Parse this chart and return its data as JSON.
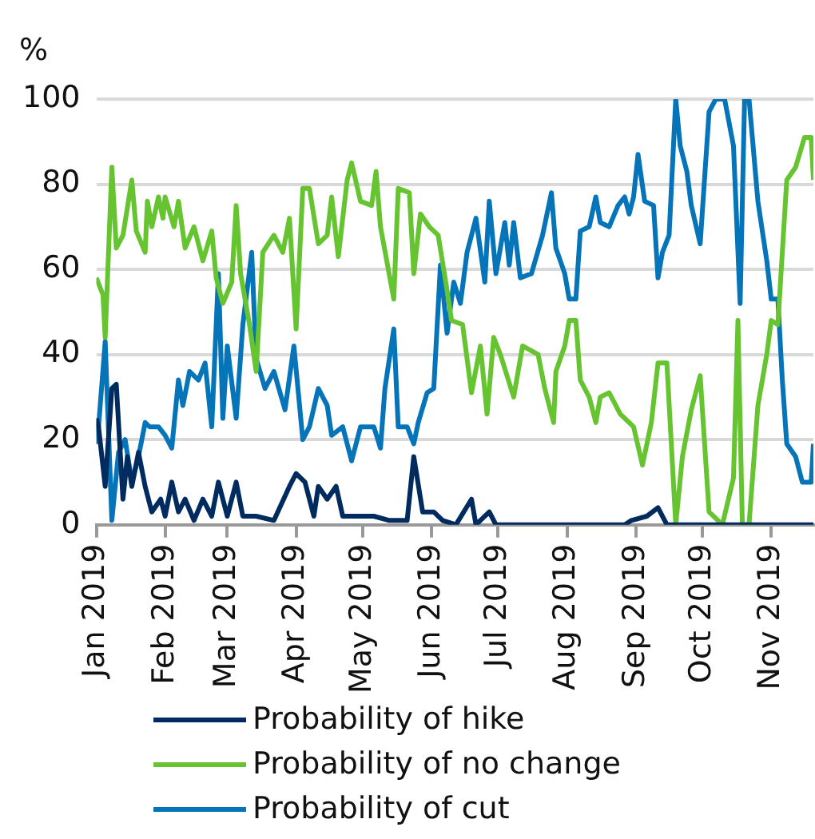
{
  "chart_data": {
    "type": "line",
    "ylabel": "%",
    "xlim": [
      "2019-01-01",
      "2019-11-20"
    ],
    "ylim": [
      0,
      100
    ],
    "yticks": [
      0,
      20,
      40,
      60,
      80,
      100
    ],
    "xticks": [
      {
        "value": "2019-01-01",
        "label": "Jan 2019"
      },
      {
        "value": "2019-02-01",
        "label": "Feb 2019"
      },
      {
        "value": "2019-03-01",
        "label": "Mar 2019"
      },
      {
        "value": "2019-04-01",
        "label": "Apr 2019"
      },
      {
        "value": "2019-05-01",
        "label": "May 2019"
      },
      {
        "value": "2019-06-01",
        "label": "Jun 2019"
      },
      {
        "value": "2019-07-01",
        "label": "Jul 2019"
      },
      {
        "value": "2019-08-01",
        "label": "Aug 2019"
      },
      {
        "value": "2019-09-01",
        "label": "Sep 2019"
      },
      {
        "value": "2019-10-01",
        "label": "Oct 2019"
      },
      {
        "value": "2019-11-01",
        "label": "Nov 2019"
      }
    ],
    "grid": "y",
    "legend": "bottom",
    "marker": "none",
    "line_style": "solid",
    "series": [
      {
        "name": "Probability of hike",
        "color": "#002b5e",
        "x": [
          "2019-01-01",
          "2019-01-02",
          "2019-01-05",
          "2019-01-08",
          "2019-01-10",
          "2019-01-13",
          "2019-01-15",
          "2019-01-17",
          "2019-01-20",
          "2019-01-23",
          "2019-01-26",
          "2019-01-30",
          "2019-02-01",
          "2019-02-04",
          "2019-02-07",
          "2019-02-10",
          "2019-02-14",
          "2019-02-18",
          "2019-02-22",
          "2019-02-25",
          "2019-03-01",
          "2019-03-05",
          "2019-03-08",
          "2019-03-14",
          "2019-03-22",
          "2019-03-29",
          "2019-04-01",
          "2019-04-05",
          "2019-04-09",
          "2019-04-11",
          "2019-04-15",
          "2019-04-19",
          "2019-04-22",
          "2019-04-28",
          "2019-05-06",
          "2019-05-13",
          "2019-05-21",
          "2019-05-24",
          "2019-05-28",
          "2019-06-02",
          "2019-06-06",
          "2019-06-12",
          "2019-06-19",
          "2019-06-21",
          "2019-06-27",
          "2019-06-30",
          "2019-08-27",
          "2019-08-30",
          "2019-09-06",
          "2019-09-11",
          "2019-09-15",
          "2019-11-20"
        ],
        "values": [
          25,
          23,
          9,
          32,
          33,
          6,
          16,
          9,
          17,
          9,
          3,
          6,
          2,
          10,
          3,
          6,
          1,
          6,
          2,
          10,
          2,
          10,
          2,
          2,
          1,
          9,
          12,
          10,
          2,
          9,
          6,
          9,
          2,
          2,
          2,
          1,
          1,
          16,
          3,
          3,
          1,
          0,
          6,
          0,
          3,
          0,
          0,
          1,
          2,
          4,
          0,
          0
        ]
      },
      {
        "name": "Probability of no change",
        "color": "#66c431",
        "x": [
          "2019-01-01",
          "2019-01-04",
          "2019-01-05",
          "2019-01-08",
          "2019-01-10",
          "2019-01-13",
          "2019-01-17",
          "2019-01-19",
          "2019-01-23",
          "2019-01-24",
          "2019-01-26",
          "2019-01-29",
          "2019-01-31",
          "2019-02-01",
          "2019-02-05",
          "2019-02-07",
          "2019-02-10",
          "2019-02-14",
          "2019-02-18",
          "2019-02-22",
          "2019-02-24",
          "2019-02-27",
          "2019-03-03",
          "2019-03-05",
          "2019-03-07",
          "2019-03-11",
          "2019-03-14",
          "2019-03-17",
          "2019-03-22",
          "2019-03-26",
          "2019-03-29",
          "2019-04-01",
          "2019-04-04",
          "2019-04-07",
          "2019-04-11",
          "2019-04-15",
          "2019-04-17",
          "2019-04-20",
          "2019-04-24",
          "2019-04-26",
          "2019-04-30",
          "2019-05-05",
          "2019-05-07",
          "2019-05-09",
          "2019-05-15",
          "2019-05-17",
          "2019-05-22",
          "2019-05-24",
          "2019-05-27",
          "2019-05-31",
          "2019-06-04",
          "2019-06-08",
          "2019-06-10",
          "2019-06-15",
          "2019-06-19",
          "2019-06-23",
          "2019-06-26",
          "2019-06-29",
          "2019-07-02",
          "2019-07-08",
          "2019-07-12",
          "2019-07-19",
          "2019-07-22",
          "2019-07-26",
          "2019-07-27",
          "2019-07-31",
          "2019-08-02",
          "2019-08-05",
          "2019-08-07",
          "2019-08-11",
          "2019-08-14",
          "2019-08-16",
          "2019-08-20",
          "2019-08-25",
          "2019-08-31",
          "2019-09-04",
          "2019-09-08",
          "2019-09-11",
          "2019-09-15",
          "2019-09-19",
          "2019-09-22",
          "2019-09-26",
          "2019-09-30",
          "2019-10-04",
          "2019-10-10",
          "2019-10-15",
          "2019-10-17",
          "2019-10-19",
          "2019-10-22",
          "2019-10-26",
          "2019-10-30",
          "2019-11-01",
          "2019-11-04",
          "2019-11-06",
          "2019-11-08",
          "2019-11-12",
          "2019-11-16",
          "2019-11-19",
          "2019-11-20"
        ],
        "values": [
          58,
          54,
          44,
          84,
          65,
          68,
          81,
          69,
          64,
          76,
          70,
          77,
          72,
          77,
          70,
          76,
          65,
          70,
          62,
          69,
          58,
          52,
          57,
          75,
          59,
          47,
          36,
          64,
          68,
          64,
          72,
          46,
          79,
          79,
          66,
          68,
          77,
          63,
          81,
          85,
          76,
          75,
          83,
          70,
          53,
          79,
          78,
          59,
          73,
          70,
          68,
          55,
          48,
          47,
          31,
          42,
          26,
          44,
          40,
          30,
          42,
          40,
          32,
          24,
          36,
          42,
          48,
          48,
          34,
          30,
          24,
          30,
          31,
          26,
          23,
          14,
          24,
          38,
          38,
          0,
          16,
          27,
          35,
          3,
          0,
          11,
          48,
          0,
          0,
          28,
          40,
          48,
          47,
          64,
          81,
          84,
          91,
          91,
          81
        ]
      },
      {
        "name": "Probability of cut",
        "color": "#0574b9",
        "x": [
          "2019-01-01",
          "2019-01-02",
          "2019-01-05",
          "2019-01-08",
          "2019-01-11",
          "2019-01-14",
          "2019-01-17",
          "2019-01-20",
          "2019-01-23",
          "2019-01-25",
          "2019-01-29",
          "2019-02-01",
          "2019-02-04",
          "2019-02-07",
          "2019-02-09",
          "2019-02-12",
          "2019-02-16",
          "2019-02-19",
          "2019-02-22",
          "2019-02-25",
          "2019-02-27",
          "2019-03-01",
          "2019-03-05",
          "2019-03-08",
          "2019-03-12",
          "2019-03-14",
          "2019-03-18",
          "2019-03-22",
          "2019-03-27",
          "2019-03-31",
          "2019-04-04",
          "2019-04-07",
          "2019-04-11",
          "2019-04-15",
          "2019-04-17",
          "2019-04-22",
          "2019-04-26",
          "2019-04-30",
          "2019-05-06",
          "2019-05-09",
          "2019-05-11",
          "2019-05-15",
          "2019-05-17",
          "2019-05-21",
          "2019-05-24",
          "2019-05-26",
          "2019-05-30",
          "2019-06-02",
          "2019-06-05",
          "2019-06-08",
          "2019-06-11",
          "2019-06-14",
          "2019-06-17",
          "2019-06-21",
          "2019-06-25",
          "2019-06-27",
          "2019-06-30",
          "2019-07-04",
          "2019-07-06",
          "2019-07-08",
          "2019-07-11",
          "2019-07-16",
          "2019-07-21",
          "2019-07-25",
          "2019-07-27",
          "2019-07-31",
          "2019-08-02",
          "2019-08-05",
          "2019-08-07",
          "2019-08-11",
          "2019-08-14",
          "2019-08-16",
          "2019-08-20",
          "2019-08-24",
          "2019-08-27",
          "2019-08-29",
          "2019-08-31",
          "2019-09-02",
          "2019-09-05",
          "2019-09-09",
          "2019-09-11",
          "2019-09-13",
          "2019-09-16",
          "2019-09-19",
          "2019-09-21",
          "2019-09-24",
          "2019-09-26",
          "2019-09-30",
          "2019-10-04",
          "2019-10-07",
          "2019-10-11",
          "2019-10-15",
          "2019-10-18",
          "2019-10-20",
          "2019-10-22",
          "2019-10-26",
          "2019-10-30",
          "2019-11-01",
          "2019-11-04",
          "2019-11-06",
          "2019-11-08",
          "2019-11-12",
          "2019-11-15",
          "2019-11-19",
          "2019-11-20"
        ],
        "values": [
          19,
          23,
          43,
          1,
          17,
          20,
          10,
          16,
          24,
          23,
          23,
          21,
          18,
          34,
          28,
          36,
          34,
          38,
          23,
          59,
          25,
          42,
          25,
          47,
          64,
          39,
          32,
          36,
          27,
          42,
          20,
          23,
          32,
          28,
          21,
          23,
          15,
          23,
          23,
          18,
          32,
          46,
          23,
          23,
          19,
          24,
          31,
          32,
          61,
          45,
          57,
          52,
          64,
          72,
          57,
          76,
          59,
          71,
          61,
          71,
          58,
          59,
          68,
          78,
          65,
          59,
          53,
          53,
          69,
          70,
          77,
          71,
          70,
          75,
          77,
          73,
          77,
          87,
          76,
          75,
          58,
          64,
          68,
          100,
          89,
          83,
          75,
          66,
          97,
          100,
          100,
          89,
          52,
          100,
          100,
          76,
          62,
          53,
          53,
          34,
          19,
          16,
          10,
          10,
          19
        ]
      }
    ]
  }
}
